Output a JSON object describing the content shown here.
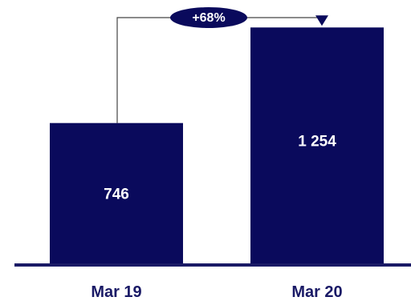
{
  "chart_data": {
    "type": "bar",
    "categories": [
      "Mar 19",
      "Mar 20"
    ],
    "values": [
      746,
      1254
    ],
    "value_labels": [
      "746",
      "1 254"
    ],
    "annotation": "+68%",
    "title": "",
    "xlabel": "",
    "ylabel": "",
    "ylim": [
      0,
      1400
    ],
    "grid": false,
    "legend": "none",
    "colors": {
      "bar": "#0a0a5c",
      "axis": "#1a1a66",
      "connector": "#444444",
      "label": "#1a1a66"
    }
  }
}
